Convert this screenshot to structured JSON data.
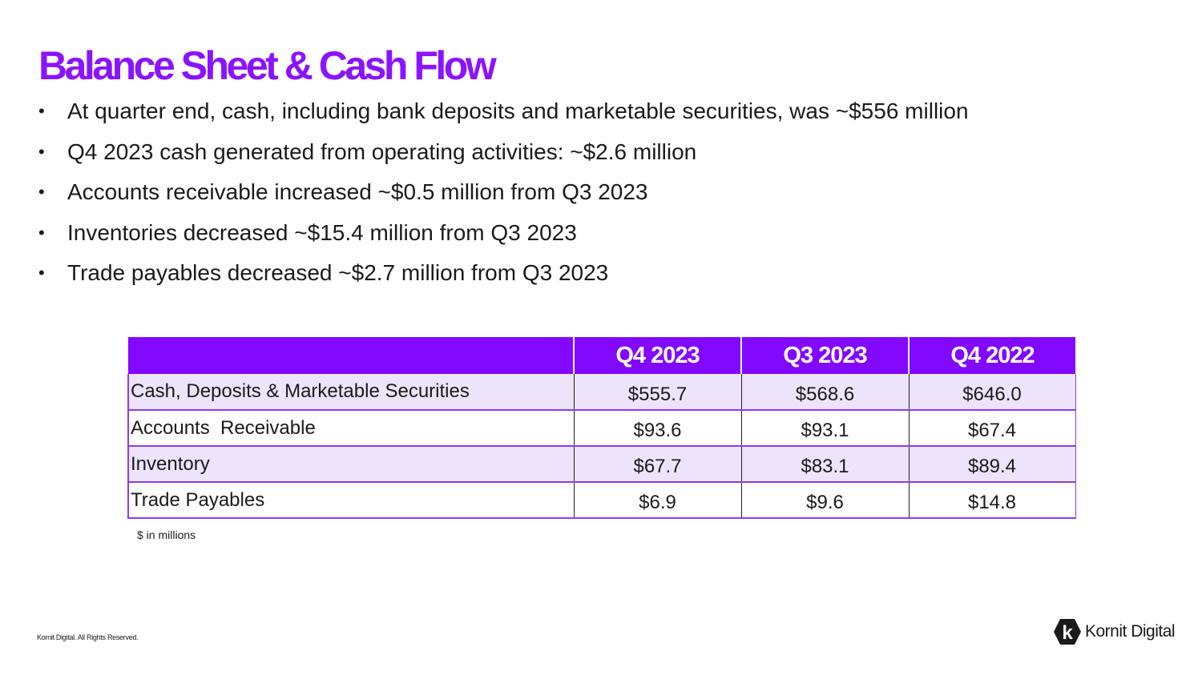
{
  "title": "Balance Sheet & Cash Flow",
  "bullets": [
    "At quarter end, cash, including bank deposits and marketable securities, was ~$556 million",
    "Q4 2023 cash generated from operating activities: ~$2.6 million",
    "Accounts receivable increased ~$0.5 million from Q3 2023",
    "Inventories decreased ~$15.4 million from Q3 2023",
    "Trade payables decreased ~$2.7 million from Q3 2023"
  ],
  "table": {
    "headers": [
      "",
      "Q4 2023",
      "Q3 2023",
      "Q4 2022"
    ],
    "rows": [
      {
        "label": "Cash, Deposits & Marketable Securities",
        "values": [
          "$555.7",
          "$568.6",
          "$646.0"
        ]
      },
      {
        "label": "Accounts  Receivable",
        "values": [
          "$93.6",
          "$93.1",
          "$67.4"
        ]
      },
      {
        "label": "Inventory",
        "values": [
          "$67.7",
          "$83.1",
          "$89.4"
        ]
      },
      {
        "label": "Trade Payables",
        "values": [
          "$6.9",
          "$9.6",
          "$14.8"
        ]
      }
    ]
  },
  "footnote": "$ in millions",
  "copyright": "Kornit Digital. All Rights Reserved.",
  "logo": {
    "text": "Kornit Digital",
    "mark_letter": "k"
  },
  "colors": {
    "accent": "#8a14ff",
    "header_bg": "#8208ff",
    "row_shade": "#ebe4fb"
  }
}
